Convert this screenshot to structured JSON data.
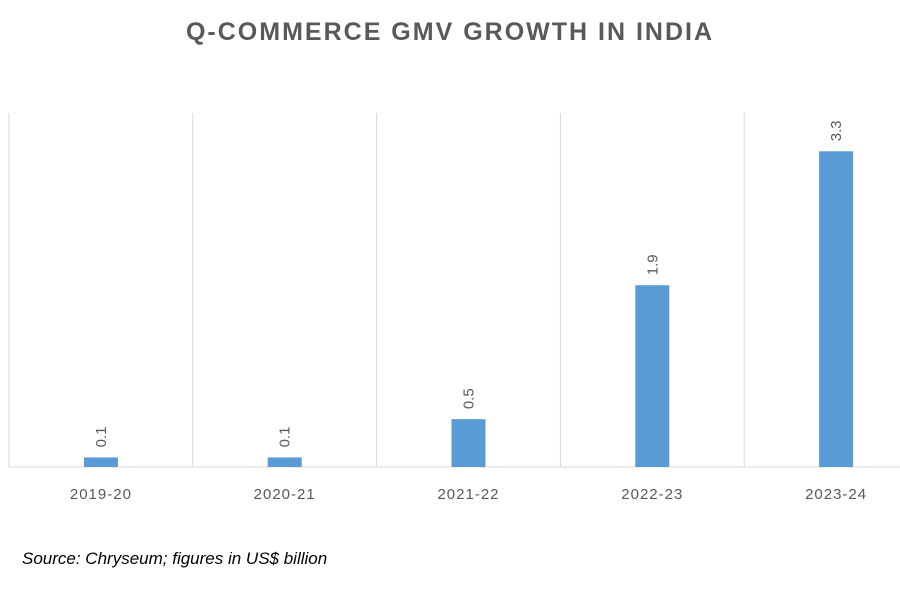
{
  "chart_data": {
    "type": "bar",
    "title": "Q-COMMERCE GMV GROWTH IN INDIA",
    "categories": [
      "2019-20",
      "2020-21",
      "2021-22",
      "2022-23",
      "2023-24"
    ],
    "series": [
      {
        "values": [
          0.1,
          0.1,
          0.5,
          1.9,
          3.3
        ]
      }
    ],
    "data_labels": [
      "0.1",
      "0.1",
      "0.5",
      "1.9",
      "3.3"
    ],
    "xlabel": "",
    "ylabel": "",
    "ylim": [
      0,
      3.7
    ],
    "grid": "vertical category separators",
    "legend": "none",
    "colors": {
      "bar": "#5b9bd5",
      "grid": "#d9d9d9",
      "text": "#595959"
    }
  },
  "source_note": "Source: Chryseum; figures in US$ billion"
}
